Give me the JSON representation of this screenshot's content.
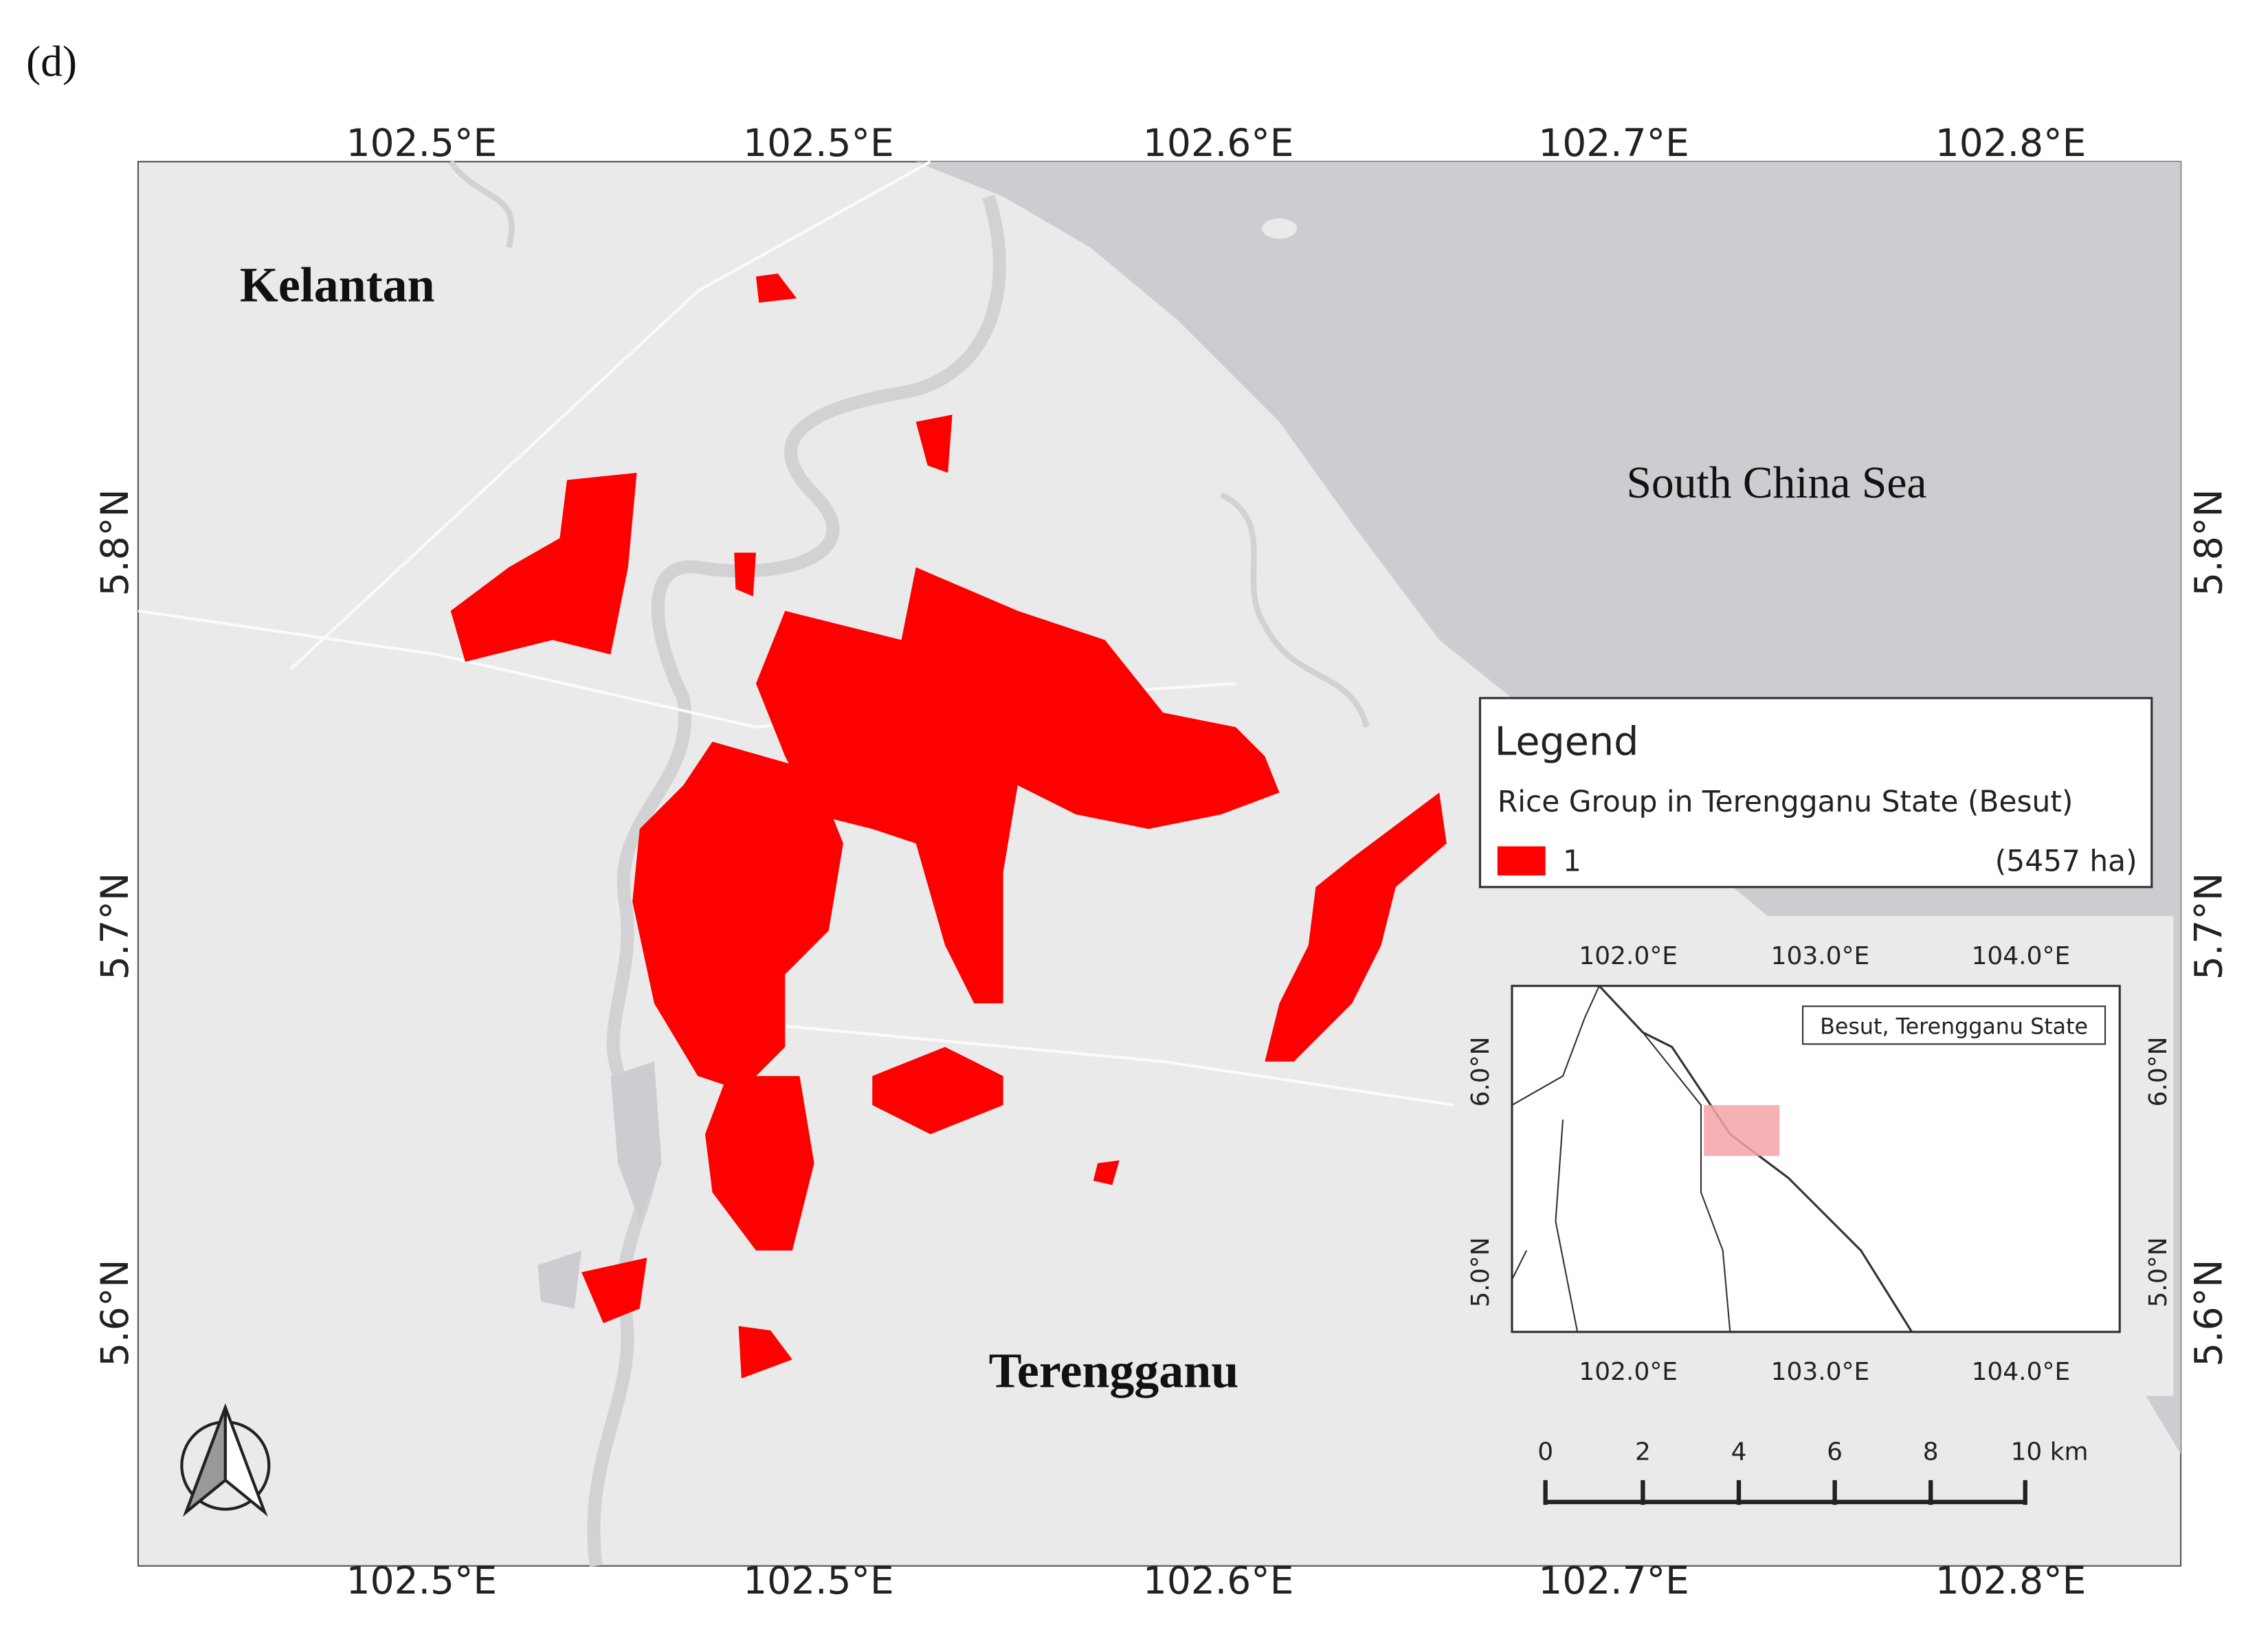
{
  "panel_label": "(d)",
  "map": {
    "x_labels_top": [
      "102.5°E",
      "102.5°E",
      "102.6°E",
      "102.7°E",
      "102.8°E"
    ],
    "x_labels_bottom": [
      "102.5°E",
      "102.5°E",
      "102.6°E",
      "102.7°E",
      "102.8°E"
    ],
    "y_labels_left": [
      "5.8°N",
      "5.7°N",
      "5.6°N"
    ],
    "y_labels_right": [
      "5.8°N",
      "5.7°N",
      "5.6°N"
    ],
    "places": [
      "Kelantan",
      "South China Sea",
      "Terengganu"
    ]
  },
  "legend": {
    "title": "Legend",
    "layer": "Rice Group in Terengganu State (Besut)",
    "item": "1",
    "area": "(5457 ha)"
  },
  "inset": {
    "title": "Besut, Terengganu State",
    "x_labels_top": [
      "102.0°E",
      "103.0°E",
      "104.0°E"
    ],
    "x_labels_bottom": [
      "102.0°E",
      "103.0°E",
      "104.0°E"
    ],
    "y_labels_left": [
      "6.0°N",
      "5.0°N"
    ],
    "y_labels_right": [
      "6.0°N",
      "5.0°N"
    ]
  },
  "scale_bar": {
    "labels": [
      "0",
      "2",
      "4",
      "6",
      "8",
      "10 km"
    ]
  }
}
